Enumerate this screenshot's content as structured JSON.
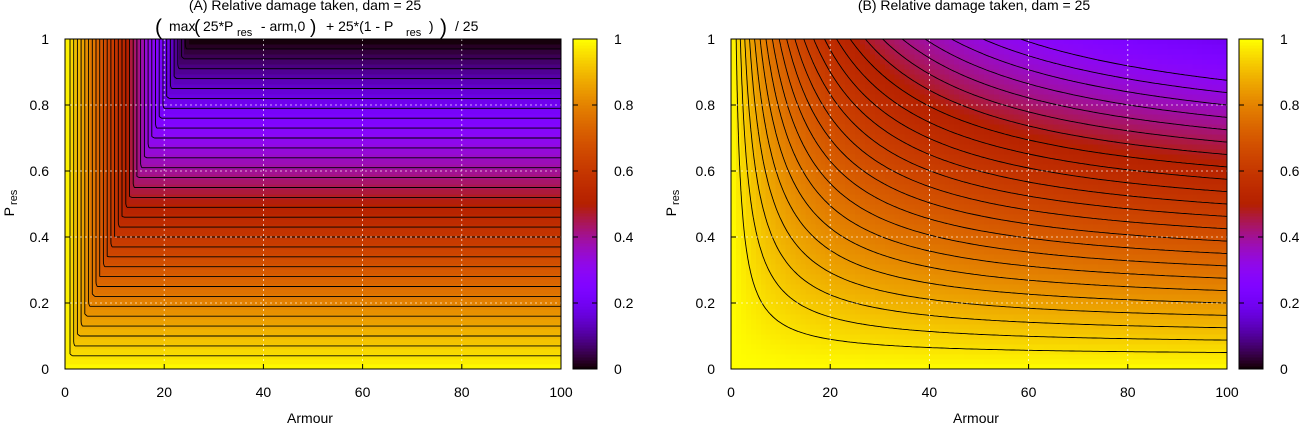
{
  "chart_data": [
    {
      "type": "heatmap",
      "title": "(A) Relative damage taken, dam = 25",
      "formula": {
        "open_paren": "(",
        "max_text": "max",
        "inner_open": "(",
        "inner_text_before_sub": "25*P",
        "inner_sub": "res",
        "inner_text_after_sub": " - arm,0",
        "inner_close": ")",
        "plus_text": "+ 25*(1 - P",
        "plus_sub": "res",
        "plus_close": " )",
        "close_paren": ")",
        "divide_text": "/ 25"
      },
      "xlabel": "Armour",
      "ylabel": "P",
      "ylabel_sub": "res",
      "xlim": [
        0,
        100
      ],
      "ylim": [
        0,
        1
      ],
      "xticks": [
        "0",
        "20",
        "40",
        "60",
        "80",
        "100"
      ],
      "yticks": [
        "0",
        "0.2",
        "0.4",
        "0.6",
        "0.8",
        "1"
      ],
      "colorbar": {
        "range": [
          0,
          1
        ],
        "ticks": [
          "0",
          "0.2",
          "0.4",
          "0.6",
          "0.8",
          "1"
        ],
        "palette": "black-purple-red-orange-yellow"
      },
      "contour_levels": [
        0.03,
        0.06,
        0.09,
        0.12,
        0.15,
        0.18,
        0.21,
        0.24,
        0.27,
        0.3,
        0.33,
        0.36,
        0.39,
        0.42,
        0.45,
        0.48,
        0.51,
        0.54,
        0.57,
        0.6,
        0.63,
        0.66,
        0.69,
        0.72,
        0.75,
        0.78,
        0.81,
        0.84,
        0.87,
        0.9,
        0.93,
        0.96
      ],
      "grid": true,
      "model": "A"
    },
    {
      "type": "heatmap",
      "title": "(B) Relative damage taken, dam = 25",
      "xlabel": "Armour",
      "ylabel": "P",
      "ylabel_sub": "res",
      "xlim": [
        0,
        100
      ],
      "ylim": [
        0,
        1
      ],
      "xticks": [
        "0",
        "20",
        "40",
        "60",
        "80",
        "100"
      ],
      "yticks": [
        "0",
        "0.2",
        "0.4",
        "0.6",
        "0.8",
        "1"
      ],
      "colorbar": {
        "range": [
          0,
          1
        ],
        "ticks": [
          "0",
          "0.2",
          "0.4",
          "0.6",
          "0.8",
          "1"
        ],
        "palette": "black-purple-red-orange-yellow"
      },
      "contour_levels": [
        0.3,
        0.33,
        0.36,
        0.39,
        0.42,
        0.45,
        0.48,
        0.51,
        0.54,
        0.57,
        0.6,
        0.63,
        0.66,
        0.69,
        0.72,
        0.75,
        0.78,
        0.81,
        0.84,
        0.87,
        0.9,
        0.93,
        0.96
      ],
      "grid": true,
      "model": "B"
    }
  ]
}
